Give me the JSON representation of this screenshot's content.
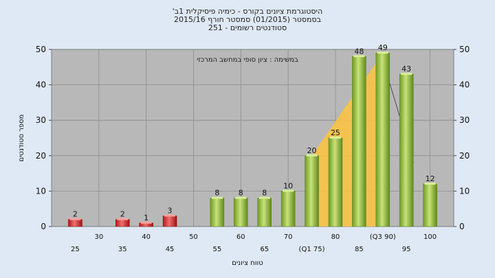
{
  "chart_data": {
    "type": "bar",
    "title_lines": [
      "היסטוגרמת ציונים בקורס - כימיה פיסיקלית 1ב'",
      "בסמסטר  (01/2015)  סמסטר חורף 2015/16",
      "סטודנטים רשומים - 251"
    ],
    "annotation": "במשימה : ציון סופי במחשב המרכזי",
    "xlabel": "טווח ציונים",
    "ylabel": "מספר סטודנטים",
    "ylim": [
      0,
      50
    ],
    "yticks": [
      "0",
      "10",
      "20",
      "30",
      "40",
      "50"
    ],
    "grid": true,
    "x_ticks_row1": [
      "30",
      "40",
      "50",
      "60",
      "70",
      "80",
      "(Q3 90)",
      "100"
    ],
    "x_ticks_row2": [
      "25",
      "35",
      "45",
      "55",
      "65",
      "(Q1 75)",
      "85",
      "95"
    ],
    "x_ticks_row1_at": [
      30,
      40,
      50,
      60,
      70,
      80,
      90,
      100
    ],
    "x_ticks_row2_at": [
      25,
      35,
      45,
      55,
      65,
      75,
      85,
      95
    ],
    "bars": [
      {
        "x": 25,
        "value": 2,
        "label": "2",
        "status": "fail"
      },
      {
        "x": 35,
        "value": 2,
        "label": "2",
        "status": "fail"
      },
      {
        "x": 40,
        "value": 1,
        "label": "1",
        "status": "fail"
      },
      {
        "x": 45,
        "value": 3,
        "label": "3",
        "status": "fail"
      },
      {
        "x": 55,
        "value": 8,
        "label": "8",
        "status": "pass"
      },
      {
        "x": 60,
        "value": 8,
        "label": "8",
        "status": "pass"
      },
      {
        "x": 65,
        "value": 8,
        "label": "8",
        "status": "pass"
      },
      {
        "x": 70,
        "value": 10,
        "label": "10",
        "status": "pass"
      },
      {
        "x": 75,
        "value": 20,
        "label": "20",
        "status": "pass"
      },
      {
        "x": 80,
        "value": 25,
        "label": "25",
        "status": "pass"
      },
      {
        "x": 85,
        "value": 48,
        "label": "48",
        "status": "pass"
      },
      {
        "x": 90,
        "value": 49,
        "label": "49",
        "status": "pass"
      },
      {
        "x": 95,
        "value": 43,
        "label": "43",
        "status": "pass"
      },
      {
        "x": 100,
        "value": 12,
        "label": "12",
        "status": "pass"
      }
    ],
    "quartile_region": {
      "x": [
        75,
        90
      ],
      "y": [
        0,
        49
      ]
    },
    "colors": {
      "plot_bg": "#b8b8b8",
      "page_bg": "#dfe9f5",
      "pass_bar": "#8fbf3a",
      "fail_bar": "#d83030",
      "quartile_fill": "#f5c24a"
    }
  }
}
